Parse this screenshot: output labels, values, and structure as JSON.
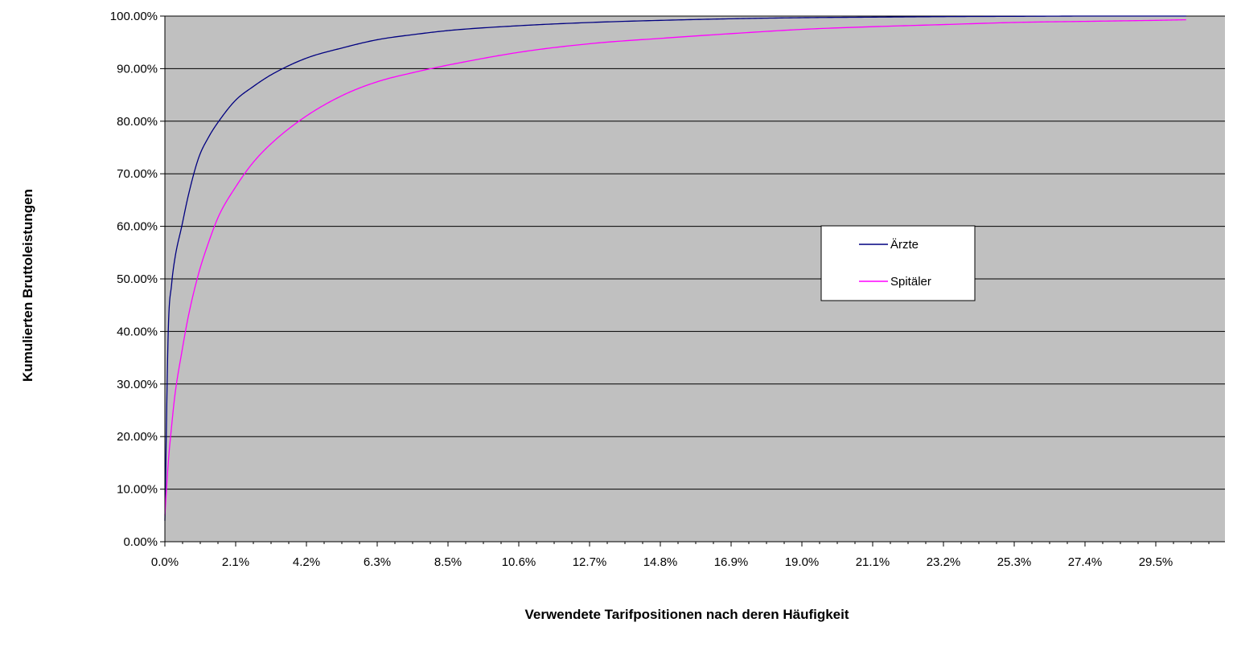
{
  "chart_data": {
    "type": "line",
    "xlabel": "Verwendete Tarifpositionen nach deren Häufigkeit",
    "ylabel": "Kumulierten Bruttoleistungen",
    "x_tick_labels": [
      "0.0%",
      "2.1%",
      "4.2%",
      "6.3%",
      "8.5%",
      "10.6%",
      "12.7%",
      "14.8%",
      "16.9%",
      "19.0%",
      "21.1%",
      "23.2%",
      "25.3%",
      "27.4%",
      "29.5%"
    ],
    "y_tick_labels": [
      "0.00%",
      "10.00%",
      "20.00%",
      "30.00%",
      "40.00%",
      "50.00%",
      "60.00%",
      "70.00%",
      "80.00%",
      "90.00%",
      "100.00%"
    ],
    "xlim": [
      0,
      30.3
    ],
    "ylim": [
      0,
      100
    ],
    "grid": "horizontal",
    "plot_background": "#c0c0c0",
    "legend_position": "center-right",
    "series": [
      {
        "name": "Ärzte",
        "color": "#000080",
        "x": [
          0,
          0.1,
          0.2,
          0.3,
          0.5,
          0.7,
          1.0,
          1.3,
          1.6,
          2.1,
          2.6,
          3.2,
          4.2,
          5.3,
          6.3,
          7.4,
          8.5,
          10.6,
          12.7,
          14.8,
          16.9,
          19.0,
          21.1,
          23.2,
          25.3,
          27.4,
          30.3
        ],
        "values": [
          4,
          40,
          49,
          54,
          60,
          66,
          73,
          77,
          80,
          84,
          86.5,
          89,
          92,
          94,
          95.5,
          96.5,
          97.3,
          98.2,
          98.8,
          99.2,
          99.5,
          99.7,
          99.8,
          99.9,
          99.95,
          100,
          100
        ]
      },
      {
        "name": "Spitäler",
        "color": "#ff00ff",
        "x": [
          0,
          0.1,
          0.2,
          0.3,
          0.5,
          0.7,
          1.0,
          1.3,
          1.6,
          2.1,
          2.6,
          3.2,
          4.2,
          5.3,
          6.3,
          7.4,
          8.5,
          10.6,
          12.7,
          14.8,
          16.9,
          19.0,
          21.1,
          23.2,
          25.3,
          27.4,
          29.5,
          30.3
        ],
        "values": [
          5,
          15,
          22,
          28,
          36,
          43,
          51,
          57,
          62,
          67.5,
          72,
          76,
          81,
          85,
          87.5,
          89.3,
          90.8,
          93.2,
          94.8,
          95.8,
          96.7,
          97.5,
          98.0,
          98.4,
          98.8,
          99.0,
          99.2,
          99.3
        ]
      }
    ]
  }
}
